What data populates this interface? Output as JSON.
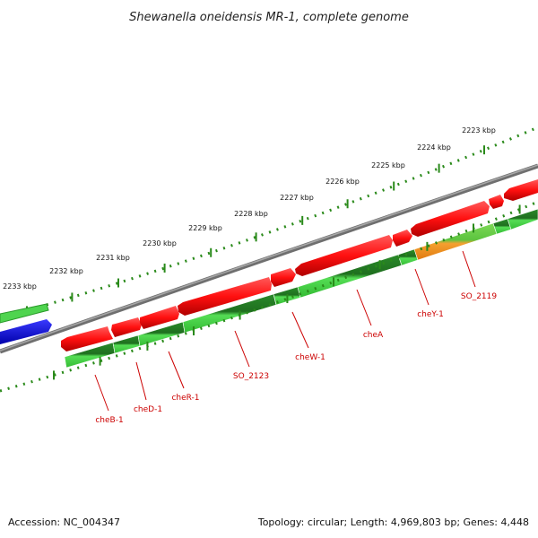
{
  "title": "Shewanella oneidensis MR-1, complete genome",
  "footer": {
    "accession": "Accession: NC_004347",
    "topology": "Topology: circular; Length: 4,969,803 bp; Genes: 4,448"
  },
  "colors": {
    "backbone": "#808080",
    "forward_gene": "#ee1111",
    "reverse_gene": "#33bb33",
    "reverse_gene_dark": "#1f7f1f",
    "other_gene": "#f08a1a",
    "blue_feature": "#1010dd",
    "tick": "#2a8a1a",
    "label": "#cc0000"
  },
  "ruler": {
    "unit": "kbp",
    "labels": [
      "2233 kbp",
      "2232 kbp",
      "2231 kbp",
      "2230 kbp",
      "2229 kbp",
      "2228 kbp",
      "2227 kbp",
      "2226 kbp",
      "2225 kbp",
      "2224 kbp",
      "2223 kbp"
    ]
  },
  "genes": [
    {
      "name": "cheB-1"
    },
    {
      "name": "cheD-1"
    },
    {
      "name": "cheR-1"
    },
    {
      "name": "SO_2123"
    },
    {
      "name": "cheW-1"
    },
    {
      "name": "cheA"
    },
    {
      "name": "cheY-1"
    },
    {
      "name": "SO_2119"
    }
  ]
}
